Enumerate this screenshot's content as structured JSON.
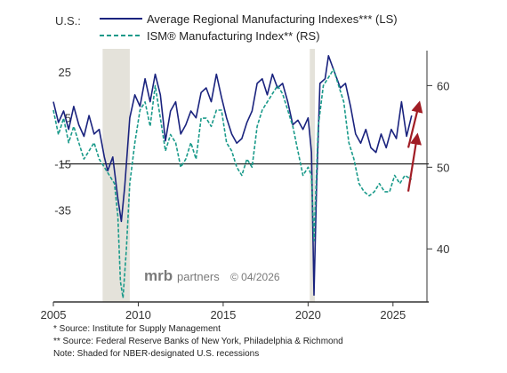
{
  "chart_data": {
    "type": "line",
    "region_label": "U.S.:",
    "series": [
      {
        "name": "Average Regional Manufacturing Indexes*** (LS)",
        "axis": "left",
        "color": "#1a237e",
        "style": "solid",
        "x": [
          2005.0,
          2005.3,
          2005.6,
          2005.9,
          2006.2,
          2006.5,
          2006.8,
          2007.1,
          2007.4,
          2007.7,
          2008.0,
          2008.2,
          2008.5,
          2008.8,
          2009.0,
          2009.2,
          2009.5,
          2009.8,
          2010.1,
          2010.4,
          2010.7,
          2011.0,
          2011.3,
          2011.6,
          2011.9,
          2012.2,
          2012.5,
          2012.8,
          2013.1,
          2013.4,
          2013.7,
          2014.0,
          2014.3,
          2014.6,
          2014.9,
          2015.2,
          2015.5,
          2015.8,
          2016.1,
          2016.4,
          2016.7,
          2017.0,
          2017.3,
          2017.6,
          2017.9,
          2018.2,
          2018.5,
          2018.8,
          2019.1,
          2019.4,
          2019.7,
          2020.0,
          2020.2,
          2020.35,
          2020.5,
          2020.7,
          2021.0,
          2021.2,
          2021.4,
          2021.6,
          2021.9,
          2022.2,
          2022.5,
          2022.8,
          2023.1,
          2023.4,
          2023.7,
          2024.0,
          2024.3,
          2024.6,
          2024.9,
          2025.2,
          2025.5,
          2025.8,
          2026.1
        ],
        "values": [
          12,
          3,
          8,
          0,
          10,
          2,
          -3,
          6,
          -2,
          0,
          -12,
          -18,
          -12,
          -30,
          -40,
          -25,
          5,
          15,
          10,
          22,
          12,
          24,
          15,
          -5,
          8,
          12,
          -2,
          2,
          8,
          5,
          16,
          18,
          12,
          24,
          14,
          5,
          -2,
          -6,
          -4,
          3,
          8,
          20,
          22,
          15,
          24,
          18,
          20,
          12,
          2,
          4,
          0,
          5,
          -10,
          -72,
          -25,
          20,
          22,
          32,
          28,
          24,
          18,
          20,
          10,
          -2,
          -6,
          0,
          -8,
          -10,
          -2,
          -8,
          0,
          -4,
          12,
          -3,
          6
        ]
      },
      {
        "name": "ISM® Manufacturing Index** (RS)",
        "axis": "right",
        "color": "#1a9a8a",
        "style": "dashed",
        "x": [
          2005.0,
          2005.3,
          2005.6,
          2005.9,
          2006.2,
          2006.5,
          2006.8,
          2007.1,
          2007.4,
          2007.7,
          2008.0,
          2008.3,
          2008.6,
          2008.8,
          2008.95,
          2009.1,
          2009.3,
          2009.5,
          2009.8,
          2010.1,
          2010.4,
          2010.7,
          2011.0,
          2011.3,
          2011.6,
          2011.9,
          2012.2,
          2012.5,
          2012.8,
          2013.1,
          2013.4,
          2013.7,
          2014.0,
          2014.3,
          2014.6,
          2014.9,
          2015.2,
          2015.5,
          2015.8,
          2016.1,
          2016.4,
          2016.7,
          2017.0,
          2017.3,
          2017.6,
          2017.9,
          2018.2,
          2018.5,
          2018.8,
          2019.1,
          2019.4,
          2019.7,
          2020.0,
          2020.2,
          2020.35,
          2020.6,
          2020.9,
          2021.2,
          2021.5,
          2021.8,
          2022.1,
          2022.4,
          2022.7,
          2023.0,
          2023.3,
          2023.6,
          2023.9,
          2024.2,
          2024.5,
          2024.8,
          2025.1,
          2025.4,
          2025.7,
          2026.1
        ],
        "values": [
          57,
          54,
          56,
          53,
          55,
          53,
          51,
          52,
          53,
          51,
          50,
          49,
          48,
          44,
          36,
          34,
          40,
          48,
          53,
          57,
          58,
          55,
          60,
          56,
          52,
          54,
          53,
          50,
          51,
          53,
          51,
          56,
          56,
          55,
          57,
          57,
          53,
          52,
          50,
          49,
          51,
          50,
          55,
          57,
          58,
          59,
          60,
          59,
          57,
          55,
          52,
          49,
          50,
          49,
          41,
          55,
          60,
          61,
          62,
          60,
          58,
          53,
          51,
          48,
          47,
          46.5,
          47,
          48,
          47,
          47,
          49,
          48,
          49,
          48.5
        ]
      }
    ],
    "xlim": [
      2005,
      2027
    ],
    "x_ticks": [
      2005,
      2010,
      2015,
      2020,
      2025
    ],
    "y_left": {
      "lim": [
        -75,
        35
      ],
      "ticks": [
        25,
        5,
        -15,
        -35
      ]
    },
    "y_right": {
      "lim": [
        33.5,
        64.5
      ],
      "ticks": [
        60,
        50,
        40
      ]
    },
    "reference_line": {
      "axis": "left",
      "value": -15
    },
    "recessions": [
      [
        2007.9,
        2009.5
      ],
      [
        2020.1,
        2020.4
      ]
    ],
    "arrows": [
      {
        "from": [
          2025.9,
          -8
        ],
        "to": [
          2026.5,
          10
        ]
      },
      {
        "from": [
          2025.9,
          -27
        ],
        "to": [
          2026.4,
          -4
        ]
      }
    ],
    "legend_position": "top-left"
  },
  "watermark": {
    "brand_mrb": "mrb",
    "brand_partners": "partners",
    "date": "© 04/2026"
  },
  "notes": {
    "source1": "*  Source: Institute for Supply Management",
    "source2": "** Source: Federal Reserve Banks of New York, Philadelphia & Richmond",
    "shading": "Note: Shaded for NBER-designated U.S. recessions"
  },
  "colors": {
    "recession": "#e4e2da",
    "arrow": "#a11d25",
    "axis": "#333333"
  }
}
